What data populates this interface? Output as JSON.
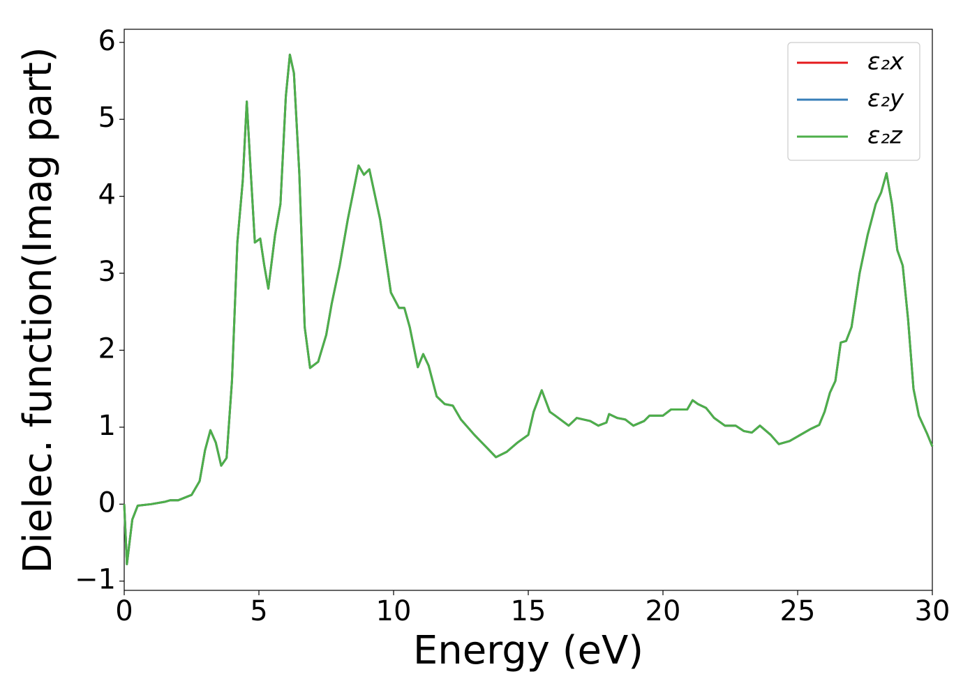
{
  "chart_data": {
    "type": "line",
    "xlabel": "Energy (eV)",
    "ylabel": "Dielec. function(Imag part)",
    "x": [
      0.0,
      0.1,
      0.3,
      0.5,
      1.0,
      1.5,
      1.7,
      2.0,
      2.5,
      2.8,
      3.0,
      3.2,
      3.4,
      3.6,
      3.8,
      4.0,
      4.2,
      4.4,
      4.55,
      4.7,
      4.85,
      5.05,
      5.2,
      5.35,
      5.6,
      5.8,
      6.0,
      6.15,
      6.3,
      6.5,
      6.7,
      6.9,
      7.2,
      7.5,
      7.7,
      8.0,
      8.3,
      8.7,
      8.9,
      9.1,
      9.5,
      9.9,
      10.2,
      10.4,
      10.6,
      10.9,
      11.1,
      11.3,
      11.6,
      11.9,
      12.2,
      12.5,
      13.0,
      13.5,
      13.8,
      14.2,
      14.6,
      15.0,
      15.2,
      15.5,
      15.8,
      16.0,
      16.5,
      16.8,
      17.3,
      17.6,
      17.9,
      18.0,
      18.3,
      18.6,
      18.9,
      19.3,
      19.5,
      20.0,
      20.3,
      20.9,
      21.1,
      21.3,
      21.6,
      21.9,
      22.3,
      22.7,
      23.0,
      23.3,
      23.6,
      24.0,
      24.3,
      24.7,
      25.0,
      25.5,
      25.8,
      26.0,
      26.2,
      26.4,
      26.6,
      26.8,
      27.0,
      27.3,
      27.6,
      27.9,
      28.1,
      28.3,
      28.5,
      28.7,
      28.9,
      29.1,
      29.3,
      29.5,
      29.8,
      30.0
    ],
    "series": [
      {
        "name": "ε₂x",
        "color": "#e41a1c",
        "values": [
          0.0,
          -0.78,
          -0.2,
          -0.02,
          0.0,
          0.03,
          0.05,
          0.05,
          0.12,
          0.3,
          0.7,
          0.96,
          0.8,
          0.5,
          0.6,
          1.6,
          3.4,
          4.2,
          5.23,
          4.3,
          3.4,
          3.45,
          3.1,
          2.8,
          3.5,
          3.9,
          5.3,
          5.84,
          5.6,
          4.3,
          2.3,
          1.77,
          1.85,
          2.2,
          2.6,
          3.1,
          3.7,
          4.4,
          4.28,
          4.35,
          3.7,
          2.75,
          2.55,
          2.55,
          2.3,
          1.78,
          1.95,
          1.8,
          1.4,
          1.3,
          1.28,
          1.1,
          0.9,
          0.72,
          0.61,
          0.68,
          0.8,
          0.9,
          1.2,
          1.48,
          1.2,
          1.15,
          1.02,
          1.12,
          1.08,
          1.02,
          1.06,
          1.17,
          1.12,
          1.1,
          1.02,
          1.08,
          1.15,
          1.15,
          1.23,
          1.23,
          1.35,
          1.3,
          1.25,
          1.12,
          1.02,
          1.02,
          0.95,
          0.93,
          1.02,
          0.9,
          0.78,
          0.82,
          0.88,
          0.98,
          1.03,
          1.2,
          1.45,
          1.6,
          2.1,
          2.12,
          2.3,
          3.0,
          3.5,
          3.9,
          4.05,
          4.3,
          3.9,
          3.3,
          3.1,
          2.4,
          1.5,
          1.15,
          0.92,
          0.75
        ]
      },
      {
        "name": "ε₂y",
        "color": "#377eb8",
        "values": [
          0.0,
          -0.78,
          -0.2,
          -0.02,
          0.0,
          0.03,
          0.05,
          0.05,
          0.12,
          0.3,
          0.7,
          0.96,
          0.8,
          0.5,
          0.6,
          1.6,
          3.4,
          4.2,
          5.23,
          4.3,
          3.4,
          3.45,
          3.1,
          2.8,
          3.5,
          3.9,
          5.3,
          5.84,
          5.6,
          4.3,
          2.3,
          1.77,
          1.85,
          2.2,
          2.6,
          3.1,
          3.7,
          4.4,
          4.28,
          4.35,
          3.7,
          2.75,
          2.55,
          2.55,
          2.3,
          1.78,
          1.95,
          1.8,
          1.4,
          1.3,
          1.28,
          1.1,
          0.9,
          0.72,
          0.61,
          0.68,
          0.8,
          0.9,
          1.2,
          1.48,
          1.2,
          1.15,
          1.02,
          1.12,
          1.08,
          1.02,
          1.06,
          1.17,
          1.12,
          1.1,
          1.02,
          1.08,
          1.15,
          1.15,
          1.23,
          1.23,
          1.35,
          1.3,
          1.25,
          1.12,
          1.02,
          1.02,
          0.95,
          0.93,
          1.02,
          0.9,
          0.78,
          0.82,
          0.88,
          0.98,
          1.03,
          1.2,
          1.45,
          1.6,
          2.1,
          2.12,
          2.3,
          3.0,
          3.5,
          3.9,
          4.05,
          4.3,
          3.9,
          3.3,
          3.1,
          2.4,
          1.5,
          1.15,
          0.92,
          0.75
        ]
      },
      {
        "name": "ε₂z",
        "color": "#4daf4a",
        "values": [
          0.0,
          -0.78,
          -0.2,
          -0.02,
          0.0,
          0.03,
          0.05,
          0.05,
          0.12,
          0.3,
          0.7,
          0.96,
          0.8,
          0.5,
          0.6,
          1.6,
          3.4,
          4.2,
          5.23,
          4.3,
          3.4,
          3.45,
          3.1,
          2.8,
          3.5,
          3.9,
          5.3,
          5.84,
          5.6,
          4.3,
          2.3,
          1.77,
          1.85,
          2.2,
          2.6,
          3.1,
          3.7,
          4.4,
          4.28,
          4.35,
          3.7,
          2.75,
          2.55,
          2.55,
          2.3,
          1.78,
          1.95,
          1.8,
          1.4,
          1.3,
          1.28,
          1.1,
          0.9,
          0.72,
          0.61,
          0.68,
          0.8,
          0.9,
          1.2,
          1.48,
          1.2,
          1.15,
          1.02,
          1.12,
          1.08,
          1.02,
          1.06,
          1.17,
          1.12,
          1.1,
          1.02,
          1.08,
          1.15,
          1.15,
          1.23,
          1.23,
          1.35,
          1.3,
          1.25,
          1.12,
          1.02,
          1.02,
          0.95,
          0.93,
          1.02,
          0.9,
          0.78,
          0.82,
          0.88,
          0.98,
          1.03,
          1.2,
          1.45,
          1.6,
          2.1,
          2.12,
          2.3,
          3.0,
          3.5,
          3.9,
          4.05,
          4.3,
          3.9,
          3.3,
          3.1,
          2.4,
          1.5,
          1.15,
          0.92,
          0.75
        ]
      }
    ],
    "xlim": [
      0,
      30
    ],
    "xticks": [
      0,
      5,
      10,
      15,
      20,
      25,
      30
    ],
    "ylim": [
      -1.12,
      6.17
    ],
    "yticks": [
      {
        "value": -1,
        "label": "−1"
      },
      0,
      1,
      2,
      3,
      4,
      5,
      6
    ],
    "grid": false,
    "legend": "upper right"
  }
}
